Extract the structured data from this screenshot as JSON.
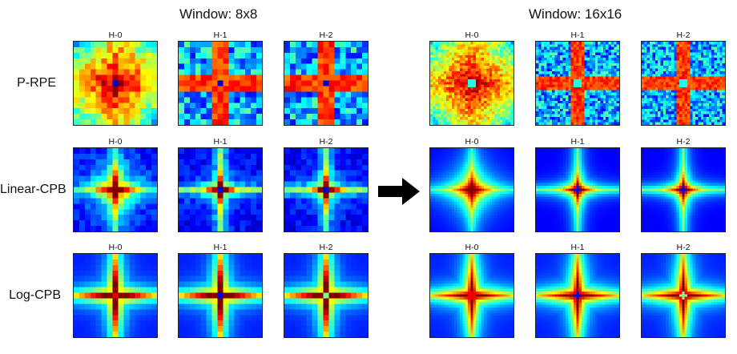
{
  "groups": [
    {
      "title": "Window: 8x8",
      "grid": 8
    },
    {
      "title": "Window: 16x16",
      "grid": 16
    }
  ],
  "rows": [
    {
      "label": "P-RPE"
    },
    {
      "label": "Linear-CPB"
    },
    {
      "label": "Log-CPB"
    }
  ],
  "heads": [
    "H-0",
    "H-1",
    "H-2"
  ],
  "arrow_icon": "right-arrow-icon"
}
